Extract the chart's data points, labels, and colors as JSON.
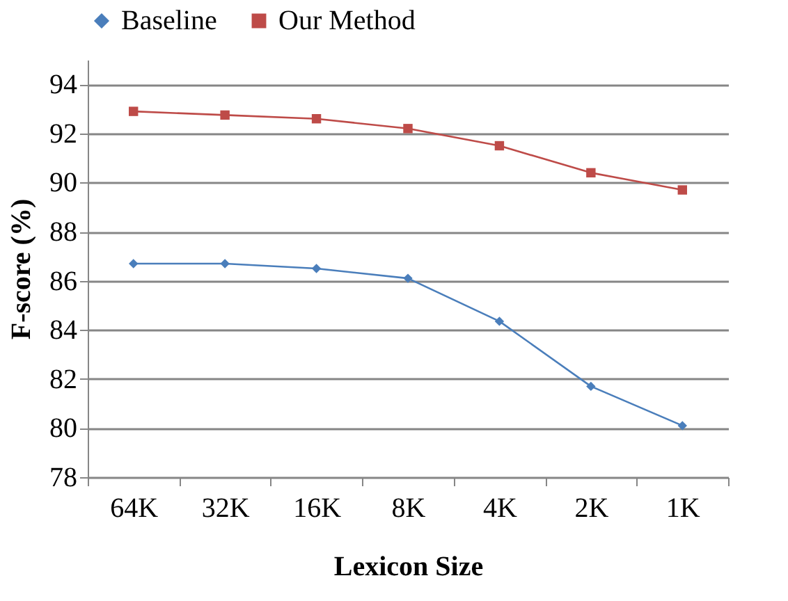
{
  "chart_data": {
    "type": "line",
    "xlabel": "Lexicon Size",
    "ylabel": "F-score (%)",
    "categories": [
      "64K",
      "32K",
      "16K",
      "8K",
      "4K",
      "2K",
      "1K"
    ],
    "series": [
      {
        "name": "Baseline",
        "color": "#4a7ebb",
        "marker": "diamond",
        "values": [
          86.7,
          86.7,
          86.5,
          86.1,
          84.35,
          81.7,
          80.1
        ]
      },
      {
        "name": "Our Method",
        "color": "#be4b48",
        "marker": "square",
        "values": [
          92.9,
          92.75,
          92.6,
          92.2,
          91.5,
          90.4,
          89.7
        ]
      }
    ],
    "ylim": [
      78,
      95
    ],
    "yticks": [
      78,
      80,
      82,
      84,
      86,
      88,
      90,
      92,
      94
    ],
    "grid": "y",
    "legend": "top",
    "line_style": "solid"
  }
}
